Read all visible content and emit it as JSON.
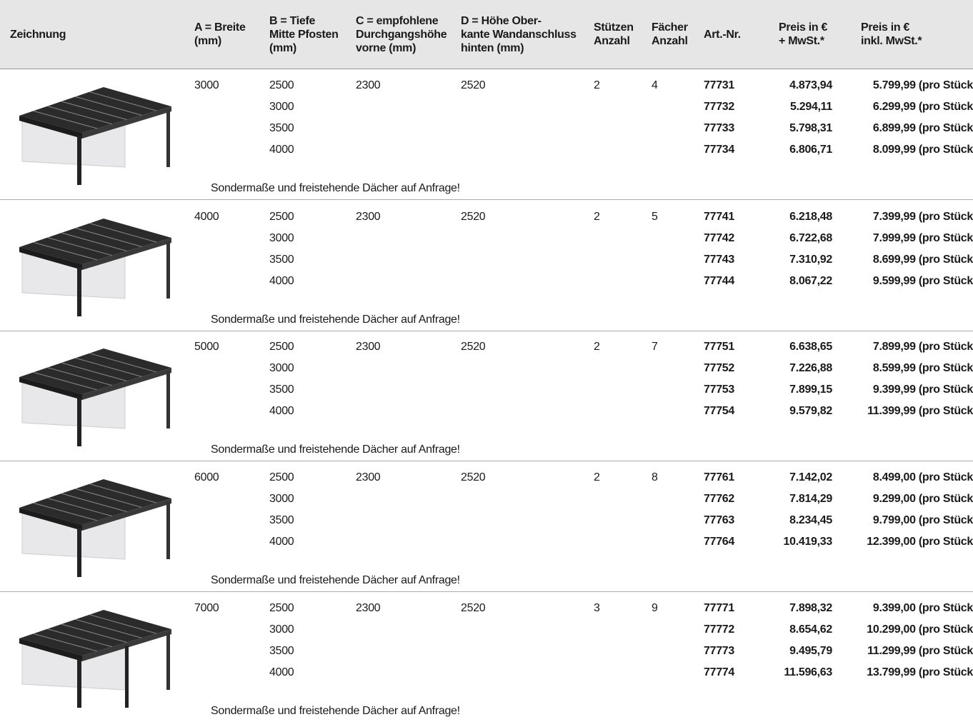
{
  "header": {
    "columns": [
      "Zeichnung",
      "A = Breite\n(mm)",
      "B = Tiefe\nMitte Pfosten\n(mm)",
      "C = empfohlene\nDurchgangshöhe\nvorne (mm)",
      "D = Höhe Ober-\nkante Wandanschluss\nhinten (mm)",
      "Stützen\nAnzahl",
      "Fächer\nAnzahl",
      "Art.-Nr.",
      "Preis in €\n+ MwSt.*",
      "Preis in €\ninkl. MwSt.*"
    ]
  },
  "groups": [
    {
      "breite": "3000",
      "tiefen": [
        "2500",
        "3000",
        "3500",
        "4000"
      ],
      "hoehe_c": "2300",
      "hoehe_d": "2520",
      "stuetzen": "2",
      "faecher": "4",
      "rows": [
        {
          "art_nr": "77731",
          "preis_netto": "4.873,94",
          "preis_brutto": "5.799,99 (pro Stück"
        },
        {
          "art_nr": "77732",
          "preis_netto": "5.294,11",
          "preis_brutto": "6.299,99 (pro Stück"
        },
        {
          "art_nr": "77733",
          "preis_netto": "5.798,31",
          "preis_brutto": "6.899,99 (pro Stück"
        },
        {
          "art_nr": "77734",
          "preis_netto": "6.806,71",
          "preis_brutto": "8.099,99 (pro Stück"
        }
      ],
      "note": "Sondermaße und freistehende Dächer auf Anfrage!"
    },
    {
      "breite": "4000",
      "tiefen": [
        "2500",
        "3000",
        "3500",
        "4000"
      ],
      "hoehe_c": "2300",
      "hoehe_d": "2520",
      "stuetzen": "2",
      "faecher": "5",
      "rows": [
        {
          "art_nr": "77741",
          "preis_netto": "6.218,48",
          "preis_brutto": "7.399,99 (pro Stück"
        },
        {
          "art_nr": "77742",
          "preis_netto": "6.722,68",
          "preis_brutto": "7.999,99 (pro Stück"
        },
        {
          "art_nr": "77743",
          "preis_netto": "7.310,92",
          "preis_brutto": "8.699,99 (pro Stück"
        },
        {
          "art_nr": "77744",
          "preis_netto": "8.067,22",
          "preis_brutto": "9.599,99 (pro Stück"
        }
      ],
      "note": "Sondermaße und freistehende Dächer auf Anfrage!"
    },
    {
      "breite": "5000",
      "tiefen": [
        "2500",
        "3000",
        "3500",
        "4000"
      ],
      "hoehe_c": "2300",
      "hoehe_d": "2520",
      "stuetzen": "2",
      "faecher": "7",
      "rows": [
        {
          "art_nr": "77751",
          "preis_netto": "6.638,65",
          "preis_brutto": "7.899,99 (pro Stück"
        },
        {
          "art_nr": "77752",
          "preis_netto": "7.226,88",
          "preis_brutto": "8.599,99 (pro Stück"
        },
        {
          "art_nr": "77753",
          "preis_netto": "7.899,15",
          "preis_brutto": "9.399,99 (pro Stück"
        },
        {
          "art_nr": "77754",
          "preis_netto": "9.579,82",
          "preis_brutto": "11.399,99 (pro Stück"
        }
      ],
      "note": "Sondermaße und freistehende Dächer auf Anfrage!"
    },
    {
      "breite": "6000",
      "tiefen": [
        "2500",
        "3000",
        "3500",
        "4000"
      ],
      "hoehe_c": "2300",
      "hoehe_d": "2520",
      "stuetzen": "2",
      "faecher": "8",
      "rows": [
        {
          "art_nr": "77761",
          "preis_netto": "7.142,02",
          "preis_brutto": "8.499,00 (pro Stück"
        },
        {
          "art_nr": "77762",
          "preis_netto": "7.814,29",
          "preis_brutto": "9.299,00 (pro Stück"
        },
        {
          "art_nr": "77763",
          "preis_netto": "8.234,45",
          "preis_brutto": "9.799,00 (pro Stück"
        },
        {
          "art_nr": "77764",
          "preis_netto": "10.419,33",
          "preis_brutto": "12.399,00 (pro Stück"
        }
      ],
      "note": "Sondermaße und freistehende Dächer auf Anfrage!"
    },
    {
      "breite": "7000",
      "tiefen": [
        "2500",
        "3000",
        "3500",
        "4000"
      ],
      "hoehe_c": "2300",
      "hoehe_d": "2520",
      "stuetzen": "3",
      "faecher": "9",
      "rows": [
        {
          "art_nr": "77771",
          "preis_netto": "7.898,32",
          "preis_brutto": "9.399,00 (pro Stück"
        },
        {
          "art_nr": "77772",
          "preis_netto": "8.654,62",
          "preis_brutto": "10.299,00 (pro Stück"
        },
        {
          "art_nr": "77773",
          "preis_netto": "9.495,79",
          "preis_brutto": "11.299,99 (pro Stück"
        },
        {
          "art_nr": "77774",
          "preis_netto": "11.596,63",
          "preis_brutto": "13.799,99 (pro Stück"
        }
      ],
      "note": "Sondermaße und freistehende Dächer auf Anfrage!"
    }
  ]
}
